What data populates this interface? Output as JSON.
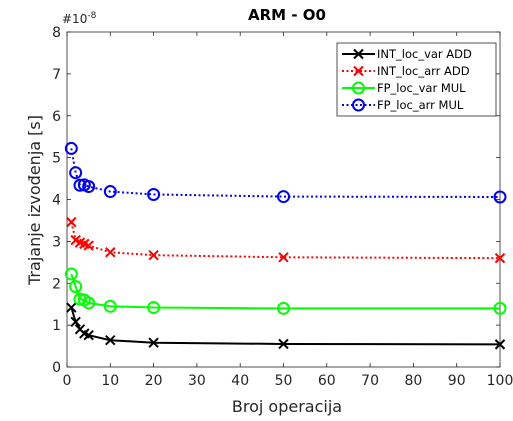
{
  "chart_data": {
    "type": "line",
    "title": "ARM - O0",
    "xlabel": "Broj operacija",
    "ylabel": "Trajanje izvođenja [s]",
    "y_exponent_label": "#10",
    "y_exponent_power": "-8",
    "xlim": [
      0,
      100
    ],
    "ylim": [
      0,
      8
    ],
    "xticks": [
      0,
      10,
      20,
      30,
      40,
      50,
      60,
      70,
      80,
      90,
      100
    ],
    "yticks": [
      0,
      1,
      2,
      3,
      4,
      5,
      6,
      7,
      8
    ],
    "x": [
      1,
      2,
      3,
      4,
      5,
      10,
      20,
      50,
      100
    ],
    "legend_position": "top-right",
    "grid": false,
    "series": [
      {
        "name": "INT_loc_var ADD",
        "color": "#000000",
        "marker": "x",
        "line": "solid",
        "values": [
          1.42,
          1.08,
          0.9,
          0.8,
          0.76,
          0.64,
          0.58,
          0.55,
          0.54
        ]
      },
      {
        "name": "INT_loc_arr ADD",
        "color": "#ff0000",
        "marker": "x",
        "line": "dotted",
        "values": [
          3.46,
          3.03,
          2.97,
          2.94,
          2.9,
          2.74,
          2.67,
          2.62,
          2.6
        ]
      },
      {
        "name": "FP_loc_var MUL",
        "color": "#00ff00",
        "marker": "o",
        "line": "solid",
        "values": [
          2.22,
          1.92,
          1.62,
          1.6,
          1.53,
          1.45,
          1.42,
          1.4,
          1.4
        ]
      },
      {
        "name": "FP_loc_arr MUL",
        "color": "#0000ff",
        "marker": "o",
        "line": "dotted",
        "values": [
          5.22,
          4.64,
          4.34,
          4.35,
          4.31,
          4.19,
          4.12,
          4.07,
          4.06
        ]
      }
    ]
  }
}
